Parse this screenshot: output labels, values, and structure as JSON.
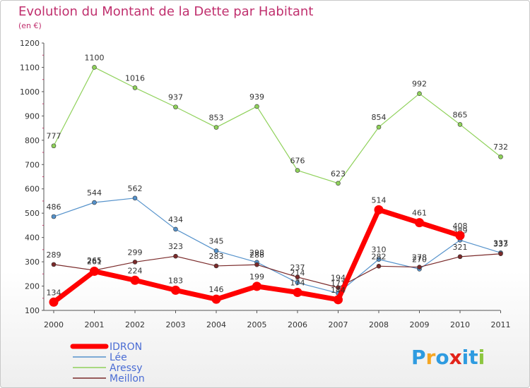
{
  "chart_data": {
    "type": "line",
    "title": "Evolution du Montant de la Dette par Habitant",
    "subtitle": "(en €)",
    "x": [
      "2000",
      "2001",
      "2002",
      "2003",
      "2004",
      "2005",
      "2006",
      "2007",
      "2008",
      "2009",
      "2010",
      "2011"
    ],
    "yticks": [
      100,
      200,
      300,
      400,
      500,
      600,
      700,
      800,
      900,
      1000,
      1100,
      1200
    ],
    "ylim": [
      100,
      1200
    ],
    "series": [
      {
        "name": "IDRON",
        "color": "#ff0000",
        "values": [
          134,
          261,
          224,
          183,
          146,
          199,
          174,
          144,
          514,
          461,
          408,
          null
        ],
        "labels": [
          "134",
          "261",
          "224",
          "183",
          "146",
          "199",
          "174",
          "144",
          "514",
          "461",
          "408",
          ""
        ]
      },
      {
        "name": "Lée",
        "color": "#5592cb",
        "values": [
          486,
          544,
          562,
          434,
          345,
          298,
          214,
          171,
          310,
          270,
          389,
          337
        ],
        "labels": [
          "486",
          "544",
          "562",
          "434",
          "345",
          "298",
          "214",
          "171",
          "310",
          "270",
          "389",
          "337"
        ]
      },
      {
        "name": "Aressy",
        "color": "#8fd15a",
        "values": [
          777,
          1100,
          1016,
          937,
          853,
          939,
          676,
          623,
          854,
          992,
          865,
          732
        ],
        "labels": [
          "777",
          "1100",
          "1016",
          "937",
          "853",
          "939",
          "676",
          "623",
          "854",
          "992",
          "865",
          "732"
        ]
      },
      {
        "name": "Meillon",
        "color": "#7a2a2a",
        "values": [
          289,
          265,
          299,
          323,
          283,
          288,
          237,
          194,
          282,
          278,
          321,
          333
        ],
        "labels": [
          "289",
          "265",
          "299",
          "323",
          "283",
          "288",
          "237",
          "194",
          "282",
          "278",
          "321",
          "333"
        ]
      }
    ],
    "grid": false,
    "legend": "bottom-left"
  },
  "logo": {
    "parts": [
      "P",
      "r",
      "o",
      "x",
      "i",
      "t",
      "i"
    ],
    "colors": [
      "#2e9be0",
      "#f5a623",
      "#2e9be0",
      "#e2231a",
      "#2e9be0",
      "#2e9be0",
      "#8cc63f"
    ]
  }
}
